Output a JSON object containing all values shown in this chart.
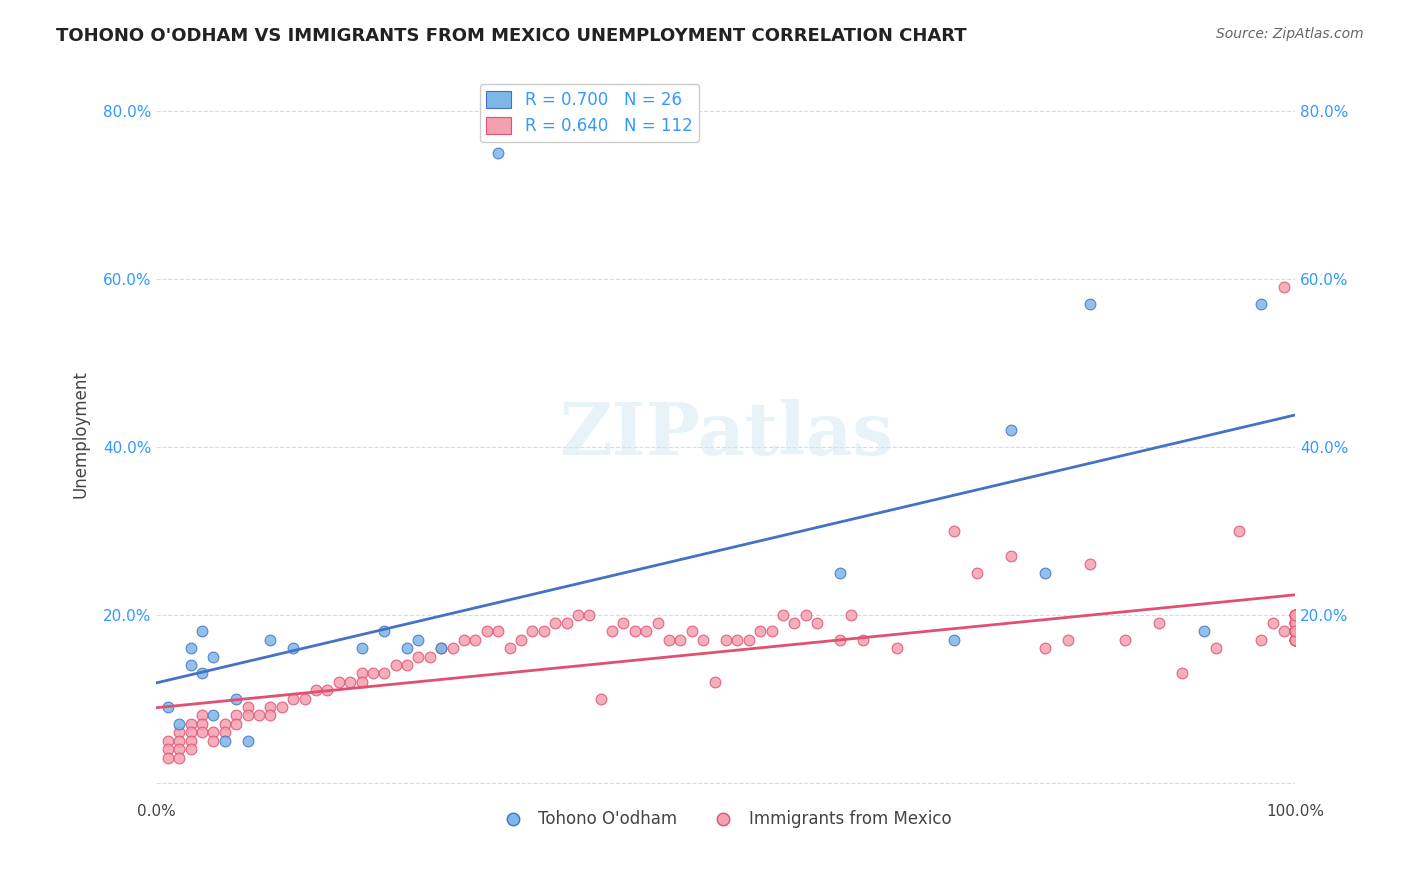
{
  "title": "TOHONO O'ODHAM VS IMMIGRANTS FROM MEXICO UNEMPLOYMENT CORRELATION CHART",
  "source": "Source: ZipAtlas.com",
  "xlabel": "",
  "ylabel": "Unemployment",
  "xlim": [
    0,
    1.0
  ],
  "ylim": [
    -0.02,
    0.85
  ],
  "xticks": [
    0.0,
    0.25,
    0.5,
    0.75,
    1.0
  ],
  "xticklabels": [
    "0.0%",
    "",
    "",
    "",
    "100.0%"
  ],
  "yticks": [
    0.0,
    0.2,
    0.4,
    0.6,
    0.8
  ],
  "yticklabels": [
    "",
    "20.0%",
    "40.0%",
    "60.0%",
    "80.0%"
  ],
  "blue_color": "#7EB6E8",
  "pink_color": "#F4A0B0",
  "blue_line_color": "#4472C4",
  "pink_line_color": "#E05070",
  "legend_R_blue": "R = 0.700",
  "legend_N_blue": "N = 26",
  "legend_R_pink": "R = 0.640",
  "legend_N_pink": "N = 112",
  "legend_label_blue": "Tohono O'odham",
  "legend_label_pink": "Immigrants from Mexico",
  "watermark": "ZIPatlas",
  "blue_x": [
    0.01,
    0.02,
    0.03,
    0.03,
    0.04,
    0.04,
    0.05,
    0.05,
    0.06,
    0.07,
    0.08,
    0.1,
    0.12,
    0.18,
    0.2,
    0.22,
    0.23,
    0.25,
    0.3,
    0.6,
    0.7,
    0.75,
    0.78,
    0.82,
    0.92,
    0.97
  ],
  "blue_y": [
    0.09,
    0.07,
    0.16,
    0.14,
    0.18,
    0.13,
    0.15,
    0.08,
    0.05,
    0.1,
    0.05,
    0.17,
    0.16,
    0.16,
    0.18,
    0.16,
    0.17,
    0.16,
    0.75,
    0.25,
    0.17,
    0.42,
    0.25,
    0.57,
    0.18,
    0.57
  ],
  "pink_x": [
    0.01,
    0.01,
    0.01,
    0.02,
    0.02,
    0.02,
    0.02,
    0.03,
    0.03,
    0.03,
    0.03,
    0.04,
    0.04,
    0.04,
    0.05,
    0.05,
    0.06,
    0.06,
    0.07,
    0.07,
    0.08,
    0.08,
    0.09,
    0.1,
    0.1,
    0.11,
    0.12,
    0.13,
    0.14,
    0.15,
    0.16,
    0.17,
    0.18,
    0.18,
    0.19,
    0.2,
    0.21,
    0.22,
    0.23,
    0.24,
    0.25,
    0.26,
    0.27,
    0.28,
    0.29,
    0.3,
    0.31,
    0.32,
    0.33,
    0.34,
    0.35,
    0.36,
    0.37,
    0.38,
    0.39,
    0.4,
    0.41,
    0.42,
    0.43,
    0.44,
    0.45,
    0.46,
    0.47,
    0.48,
    0.49,
    0.5,
    0.51,
    0.52,
    0.53,
    0.54,
    0.55,
    0.56,
    0.57,
    0.58,
    0.6,
    0.61,
    0.62,
    0.65,
    0.7,
    0.72,
    0.75,
    0.78,
    0.8,
    0.82,
    0.85,
    0.88,
    0.9,
    0.93,
    0.95,
    0.97,
    0.98,
    0.99,
    0.99,
    1.0,
    1.0,
    1.0,
    1.0,
    1.0,
    1.0,
    1.0,
    1.0,
    1.0,
    1.0,
    1.0,
    1.0,
    1.0,
    1.0,
    1.0,
    1.0,
    1.0,
    1.0,
    1.0
  ],
  "pink_y": [
    0.05,
    0.04,
    0.03,
    0.06,
    0.05,
    0.04,
    0.03,
    0.07,
    0.06,
    0.05,
    0.04,
    0.08,
    0.07,
    0.06,
    0.06,
    0.05,
    0.07,
    0.06,
    0.08,
    0.07,
    0.09,
    0.08,
    0.08,
    0.09,
    0.08,
    0.09,
    0.1,
    0.1,
    0.11,
    0.11,
    0.12,
    0.12,
    0.13,
    0.12,
    0.13,
    0.13,
    0.14,
    0.14,
    0.15,
    0.15,
    0.16,
    0.16,
    0.17,
    0.17,
    0.18,
    0.18,
    0.16,
    0.17,
    0.18,
    0.18,
    0.19,
    0.19,
    0.2,
    0.2,
    0.1,
    0.18,
    0.19,
    0.18,
    0.18,
    0.19,
    0.17,
    0.17,
    0.18,
    0.17,
    0.12,
    0.17,
    0.17,
    0.17,
    0.18,
    0.18,
    0.2,
    0.19,
    0.2,
    0.19,
    0.17,
    0.2,
    0.17,
    0.16,
    0.3,
    0.25,
    0.27,
    0.16,
    0.17,
    0.26,
    0.17,
    0.19,
    0.13,
    0.16,
    0.3,
    0.17,
    0.19,
    0.59,
    0.18,
    0.19,
    0.2,
    0.17,
    0.18,
    0.19,
    0.17,
    0.18,
    0.19,
    0.2,
    0.17,
    0.18,
    0.19,
    0.2,
    0.17,
    0.18,
    0.19,
    0.2,
    0.17,
    0.18
  ]
}
